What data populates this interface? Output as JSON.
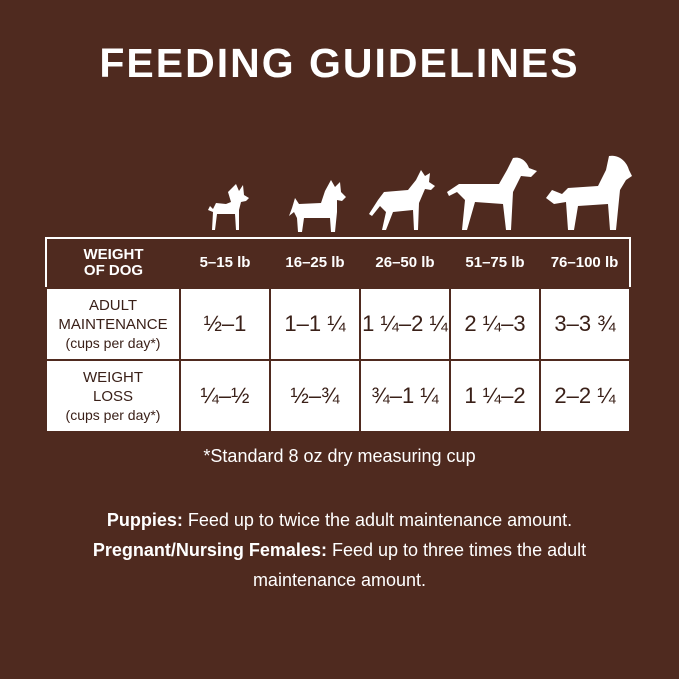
{
  "title": "FEEDING GUIDELINES",
  "icons": [
    "small-dog-icon",
    "terrier-dog-icon",
    "medium-dog-icon",
    "large-dog-icon",
    "giant-dog-icon"
  ],
  "table": {
    "header_label": [
      "WEIGHT",
      "OF DOG"
    ],
    "columns": [
      "5–15 lb",
      "16–25 lb",
      "26–50 lb",
      "51–75 lb",
      "76–100 lb"
    ],
    "rows": [
      {
        "label": [
          "ADULT",
          "MAINTENANCE"
        ],
        "sub": "(cups per day*)",
        "values": [
          "½–1",
          "1–1 ¼",
          "1 ¼–2 ¼",
          "2 ¼–3",
          "3–3 ¾"
        ]
      },
      {
        "label": [
          "WEIGHT",
          "LOSS"
        ],
        "sub": "(cups per day*)",
        "values": [
          "¼–½",
          "½–¾",
          "¾–1 ¼",
          "1 ¼–2",
          "2–2 ¼"
        ]
      }
    ]
  },
  "footnote": "*Standard 8 oz dry measuring cup",
  "notes": [
    {
      "bold": "Puppies:",
      "text": " Feed up to twice the adult maintenance amount."
    },
    {
      "bold": "Pregnant/Nursing Females:",
      "text": " Feed up to three times the adult maintenance amount."
    }
  ],
  "colors": {
    "background": "#4f2a1f",
    "table_text": "#3a2018"
  }
}
